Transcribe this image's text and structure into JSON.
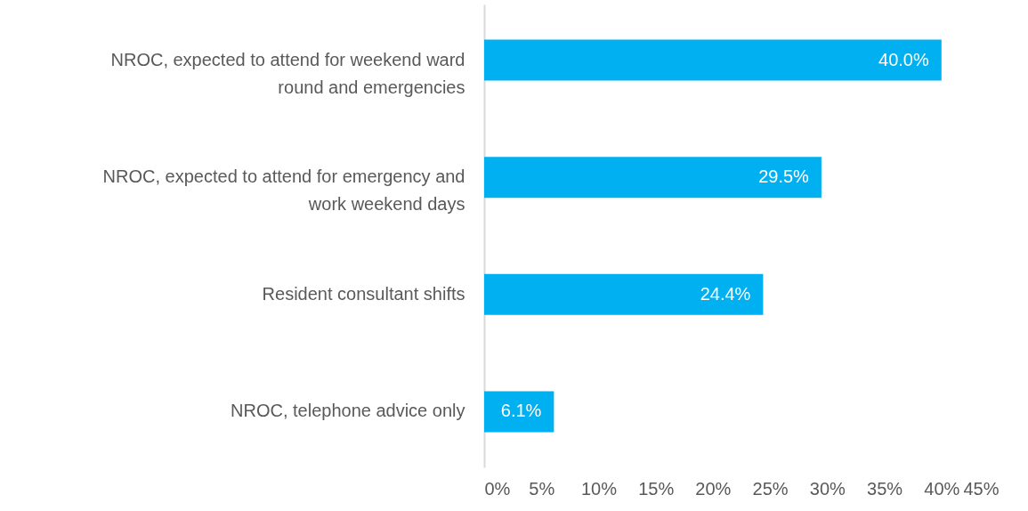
{
  "chart_data": {
    "type": "bar",
    "orientation": "horizontal",
    "categories": [
      "NROC, expected to attend for weekend ward round and emergencies",
      "NROC, expected to attend for emergency and work weekend days",
      "Resident consultant shifts",
      "NROC, telephone advice only"
    ],
    "values": [
      40.0,
      29.5,
      24.4,
      6.1
    ],
    "value_labels": [
      "40.0%",
      "29.5%",
      "24.4%",
      "6.1%"
    ],
    "color": "#00b0f0",
    "xlim": [
      0,
      45
    ],
    "xticks": [
      {
        "value": 0,
        "label": "0%"
      },
      {
        "value": 5,
        "label": "5%"
      },
      {
        "value": 10,
        "label": "10%"
      },
      {
        "value": 15,
        "label": "15%"
      },
      {
        "value": 20,
        "label": "20%"
      },
      {
        "value": 25,
        "label": "25%"
      },
      {
        "value": 30,
        "label": "30%"
      },
      {
        "value": 35,
        "label": "35%"
      },
      {
        "value": 40,
        "label": "40%"
      },
      {
        "value": 45,
        "label": "45%"
      }
    ],
    "grid": false
  }
}
